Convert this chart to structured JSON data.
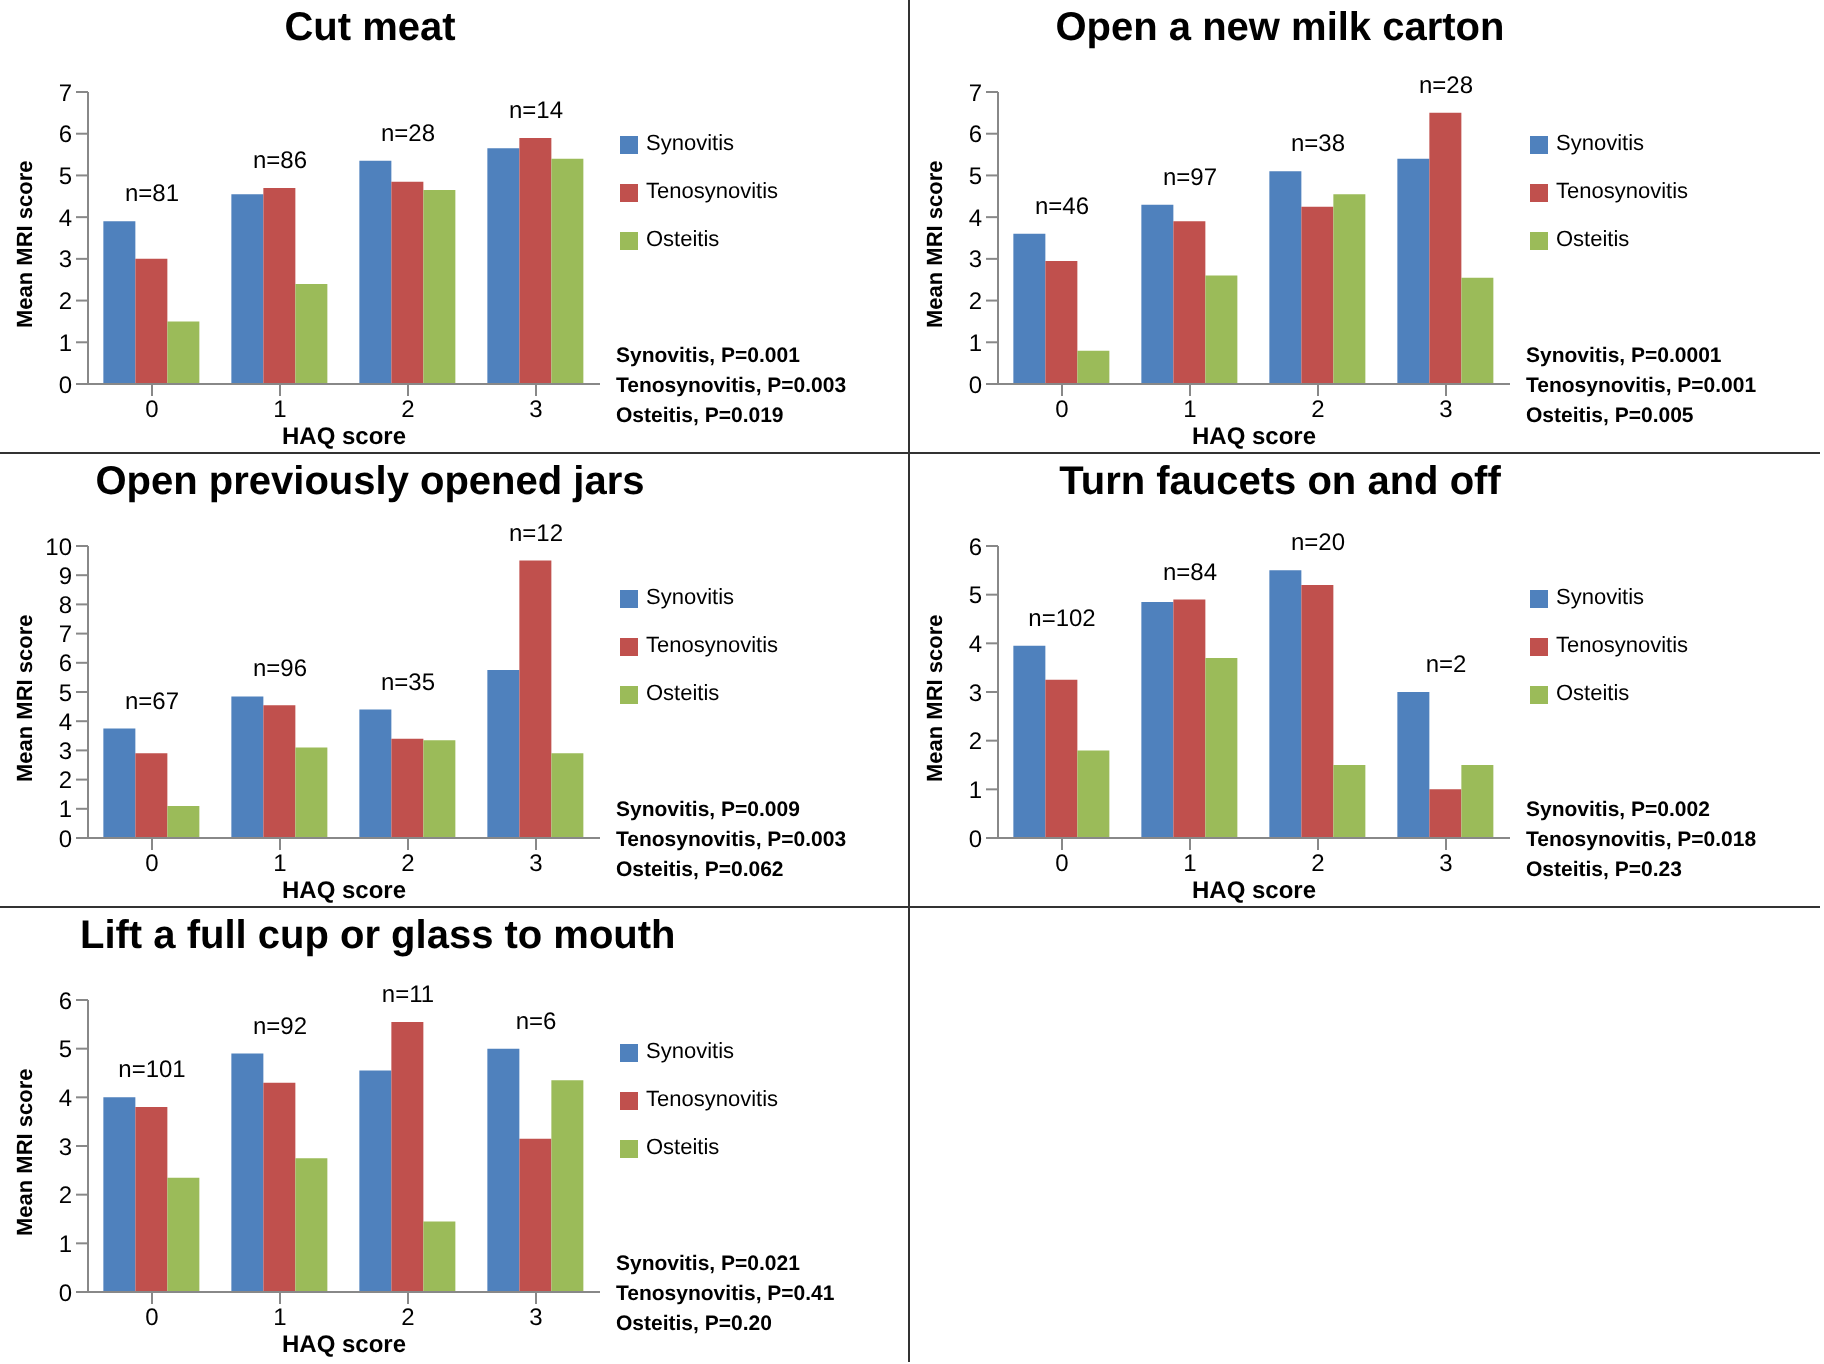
{
  "chart_data": [
    {
      "type": "bar",
      "title": "Cut meat",
      "xlabel": "HAQ score",
      "ylabel": "Mean MRI score",
      "categories": [
        "0",
        "1",
        "2",
        "3"
      ],
      "ylim": [
        0,
        7
      ],
      "yticks": [
        0,
        1,
        2,
        3,
        4,
        5,
        6,
        7
      ],
      "legend": "right",
      "series": [
        {
          "name": "Synovitis",
          "color": "#4f81bd",
          "values": [
            3.9,
            4.55,
            5.35,
            5.65
          ]
        },
        {
          "name": "Tenosynovitis",
          "color": "#c0504d",
          "values": [
            3.0,
            4.7,
            4.85,
            5.9
          ]
        },
        {
          "name": "Osteitis",
          "color": "#9bbb59",
          "values": [
            1.5,
            2.4,
            4.65,
            5.4
          ]
        }
      ],
      "annotations": [
        "n=81",
        "n=86",
        "n=28",
        "n=14",
        "Synovitis, P=0.001",
        "Tenosynovitis, P=0.003",
        "Osteitis, P=0.019"
      ]
    },
    {
      "type": "bar",
      "title": "Open a new milk carton",
      "xlabel": "HAQ score",
      "ylabel": "Mean MRI score",
      "categories": [
        "0",
        "1",
        "2",
        "3"
      ],
      "ylim": [
        0,
        7
      ],
      "yticks": [
        0,
        1,
        2,
        3,
        4,
        5,
        6,
        7
      ],
      "legend": "right",
      "series": [
        {
          "name": "Synovitis",
          "color": "#4f81bd",
          "values": [
            3.6,
            4.3,
            5.1,
            5.4
          ]
        },
        {
          "name": "Tenosynovitis",
          "color": "#c0504d",
          "values": [
            2.95,
            3.9,
            4.25,
            6.5
          ]
        },
        {
          "name": "Osteitis",
          "color": "#9bbb59",
          "values": [
            0.8,
            2.6,
            4.55,
            2.55
          ]
        }
      ],
      "annotations": [
        "n=46",
        "n=97",
        "n=38",
        "n=28",
        "Synovitis, P=0.0001",
        "Tenosynovitis, P=0.001",
        "Osteitis, P=0.005"
      ]
    },
    {
      "type": "bar",
      "title": "Open previously opened jars",
      "xlabel": "HAQ score",
      "ylabel": "Mean MRI score",
      "categories": [
        "0",
        "1",
        "2",
        "3"
      ],
      "ylim": [
        0,
        10
      ],
      "yticks": [
        0,
        1,
        2,
        3,
        4,
        5,
        6,
        7,
        8,
        9,
        10
      ],
      "legend": "right",
      "series": [
        {
          "name": "Synovitis",
          "color": "#4f81bd",
          "values": [
            3.75,
            4.85,
            4.4,
            5.75
          ]
        },
        {
          "name": "Tenosynovitis",
          "color": "#c0504d",
          "values": [
            2.9,
            4.55,
            3.4,
            9.5
          ]
        },
        {
          "name": "Osteitis",
          "color": "#9bbb59",
          "values": [
            1.1,
            3.1,
            3.35,
            2.9
          ]
        }
      ],
      "annotations": [
        "n=67",
        "n=96",
        "n=35",
        "n=12",
        "Synovitis, P=0.009",
        "Tenosynovitis, P=0.003",
        "Osteitis, P=0.062"
      ]
    },
    {
      "type": "bar",
      "title": "Turn faucets on and off",
      "xlabel": "HAQ score",
      "ylabel": "Mean MRI score",
      "categories": [
        "0",
        "1",
        "2",
        "3"
      ],
      "ylim": [
        0,
        6
      ],
      "yticks": [
        0,
        1,
        2,
        3,
        4,
        5,
        6
      ],
      "legend": "right",
      "series": [
        {
          "name": "Synovitis",
          "color": "#4f81bd",
          "values": [
            3.95,
            4.85,
            5.5,
            3.0
          ]
        },
        {
          "name": "Tenosynovitis",
          "color": "#c0504d",
          "values": [
            3.25,
            4.9,
            5.2,
            1.0
          ]
        },
        {
          "name": "Osteitis",
          "color": "#9bbb59",
          "values": [
            1.8,
            3.7,
            1.5,
            1.5
          ]
        }
      ],
      "annotations": [
        "n=102",
        "n=84",
        "n=20",
        "n=2",
        "Synovitis, P=0.002",
        "Tenosynovitis, P=0.018",
        "Osteitis, P=0.23"
      ]
    },
    {
      "type": "bar",
      "title": "Lift a full cup or glass to mouth",
      "xlabel": "HAQ score",
      "ylabel": "Mean MRI score",
      "categories": [
        "0",
        "1",
        "2",
        "3"
      ],
      "ylim": [
        0,
        6
      ],
      "yticks": [
        0,
        1,
        2,
        3,
        4,
        5,
        6
      ],
      "legend": "right",
      "series": [
        {
          "name": "Synovitis",
          "color": "#4f81bd",
          "values": [
            4.0,
            4.9,
            4.55,
            5.0
          ]
        },
        {
          "name": "Tenosynovitis",
          "color": "#c0504d",
          "values": [
            3.8,
            4.3,
            5.55,
            3.15
          ]
        },
        {
          "name": "Osteitis",
          "color": "#9bbb59",
          "values": [
            2.35,
            2.75,
            1.45,
            4.35
          ]
        }
      ],
      "annotations": [
        "n=101",
        "n=92",
        "n=11",
        "n=6",
        "Synovitis, P=0.021",
        "Tenosynovitis, P=0.41",
        "Osteitis, P=0.20"
      ]
    }
  ]
}
